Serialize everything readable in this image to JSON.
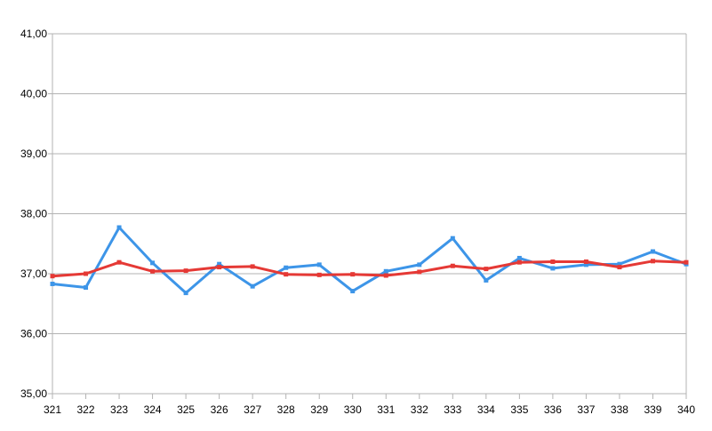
{
  "chart_data": {
    "type": "line",
    "title": "",
    "xlabel": "",
    "ylabel": "",
    "categories": [
      "321",
      "322",
      "323",
      "324",
      "325",
      "326",
      "327",
      "328",
      "329",
      "330",
      "331",
      "332",
      "333",
      "334",
      "335",
      "336",
      "337",
      "338",
      "339",
      "340"
    ],
    "y_ticks": [
      "35,00",
      "36,00",
      "37,00",
      "38,00",
      "39,00",
      "40,00",
      "41,00"
    ],
    "ylim": [
      35,
      41
    ],
    "grid": true,
    "legend": "none",
    "series": [
      {
        "color": "#3d95e8",
        "values": [
          36.83,
          36.77,
          37.77,
          37.18,
          36.68,
          37.16,
          36.79,
          37.1,
          37.15,
          36.71,
          37.04,
          37.15,
          37.59,
          36.89,
          37.26,
          37.09,
          37.15,
          37.16,
          37.37,
          37.16
        ]
      },
      {
        "color": "#e53935",
        "values": [
          36.96,
          37.0,
          37.19,
          37.04,
          37.05,
          37.11,
          37.12,
          36.99,
          36.98,
          36.99,
          36.97,
          37.03,
          37.13,
          37.08,
          37.19,
          37.2,
          37.2,
          37.11,
          37.21,
          37.19
        ]
      }
    ]
  }
}
